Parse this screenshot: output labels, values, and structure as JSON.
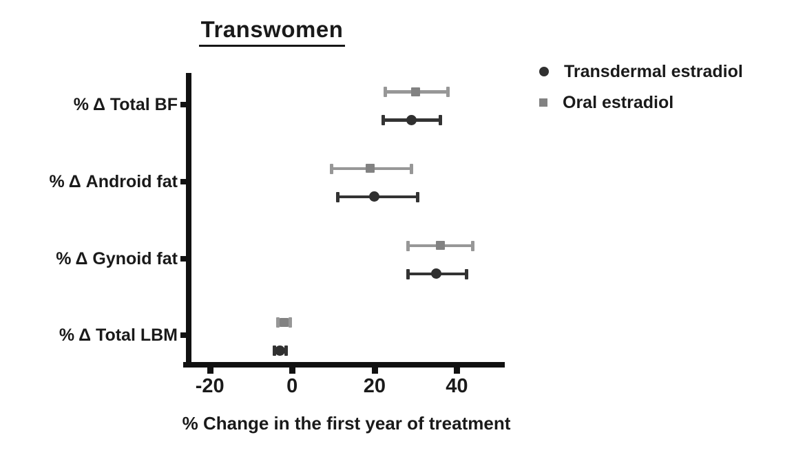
{
  "chart_data": {
    "type": "scatter",
    "subtype": "horizontal-dot-plot-with-error-bars",
    "title": "Transwomen",
    "xlabel": "% Change in the first year of treatment",
    "categories": [
      "% Δ Total BF",
      "% Δ Android fat",
      "% Δ Gynoid fat",
      "% Δ Total LBM"
    ],
    "x_ticks": [
      -20,
      0,
      20,
      40
    ],
    "xlim": [
      -25.8,
      50.8
    ],
    "grid": false,
    "legend_position": "top-right",
    "axis_color": "#111111",
    "series": [
      {
        "name": "Transdermal estradiol",
        "marker": "circle",
        "color": "#303030",
        "line_color": "#333333",
        "values": [
          {
            "category": "% Δ Total BF",
            "mean": 29,
            "low": 22,
            "high": 36
          },
          {
            "category": "% Δ Android fat",
            "mean": 20,
            "low": 11,
            "high": 30.5
          },
          {
            "category": "% Δ Gynoid fat",
            "mean": 35,
            "low": 28,
            "high": 42.5
          },
          {
            "category": "% Δ Total LBM",
            "mean": -2.9,
            "low": -4.4,
            "high": -1.4
          }
        ]
      },
      {
        "name": "Oral estradiol",
        "marker": "square",
        "color": "#828282",
        "line_color": "#979797",
        "values": [
          {
            "category": "% Δ Total BF",
            "mean": 30,
            "low": 22.5,
            "high": 38
          },
          {
            "category": "% Δ Android fat",
            "mean": 19,
            "low": 9.5,
            "high": 29
          },
          {
            "category": "% Δ Gynoid fat",
            "mean": 36,
            "low": 28,
            "high": 44
          },
          {
            "category": "% Δ Total LBM",
            "mean": -2,
            "low": -3.6,
            "high": -0.4
          }
        ]
      }
    ]
  }
}
